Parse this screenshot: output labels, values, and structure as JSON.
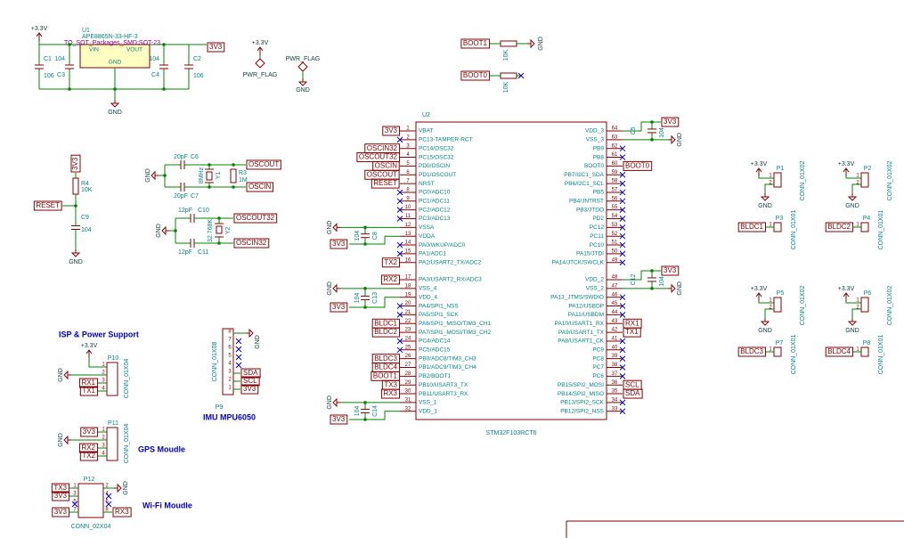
{
  "power": {
    "vcc": "+3.3V",
    "u1_ref": "U1",
    "u1_part": "APE8865N-33-HF-3",
    "u1_fp": "TO_SOT_Packages_SMD:SOT-23",
    "u1_vin": "VIN",
    "u1_vout": "VOUT",
    "u1_gnd": "GND",
    "c1_ref": "C1",
    "c1_val": "106",
    "c3_ref": "C3",
    "c3_val": "104",
    "c4_ref": "C4",
    "c4_val": "104",
    "c2_ref": "C2",
    "c2_val": "106",
    "out_net": "3V3",
    "gnd": "GND"
  },
  "pwr_flags": {
    "vcc": "+3.3V",
    "flag1": "PWR_FLAG",
    "flag2": "PWR_FLAG",
    "gnd": "GND"
  },
  "boot": {
    "boot1_net": "BOOT1",
    "r1_val": "10K",
    "gnd": "GND",
    "boot0_net": "BOOT0",
    "r2_val": "10K"
  },
  "osc": {
    "gnd": "GND",
    "c6_ref": "C6",
    "c6_val": "20pF",
    "c7_ref": "C7",
    "c7_val": "20pF",
    "y1_ref": "Y1",
    "y1_val": "8MHz",
    "r3_ref": "R3",
    "r3_val": "1M",
    "oscout_net": "OSCOUT",
    "oscin_net": "OSCIN"
  },
  "osc32": {
    "gnd": "GND",
    "c10_ref": "C10",
    "c10_val": "12pF",
    "c11_ref": "C11",
    "c11_val": "12pF",
    "y2_ref": "Y2",
    "y2_val": "32.768K",
    "oscout32_net": "OSCOUT32",
    "oscin32_net": "OSCIN32"
  },
  "reset": {
    "vcc_net": "3V3",
    "r4_ref": "R4",
    "r4_val": "10K",
    "c9_ref": "C9",
    "c9_val": "104",
    "reset_net": "RESET",
    "gnd": "GND"
  },
  "mcu": {
    "ref": "U2",
    "part": "STM32F103RCT6",
    "left_pins": [
      {
        "num": "1",
        "name": "VBAT",
        "net": "3V3"
      },
      {
        "num": "2",
        "name": "PC13-TAMPER-RCT",
        "nc": true
      },
      {
        "num": "3",
        "name": "PC14/OSC32",
        "net": "OSCIN32"
      },
      {
        "num": "4",
        "name": "PC15/OSC32",
        "net": "OSCOUT32"
      },
      {
        "num": "5",
        "name": "PD0/OSCIN",
        "net": "OSCIN"
      },
      {
        "num": "6",
        "name": "PD1/OSCOUT",
        "net": "OSCOUT"
      },
      {
        "num": "7",
        "name": "NRST",
        "net": "RESET"
      },
      {
        "num": "8",
        "name": "PC0/ADC10",
        "nc": true
      },
      {
        "num": "9",
        "name": "PC1/ADC11",
        "nc": true
      },
      {
        "num": "10",
        "name": "PC2/ADC12",
        "nc": true
      },
      {
        "num": "11",
        "name": "PC3/ADC13",
        "nc": true
      },
      {
        "num": "12",
        "name": "VSSA"
      },
      {
        "num": "13",
        "name": "VDDA"
      },
      {
        "num": "14",
        "name": "PA0/WKUP/ADC0",
        "nc": true
      },
      {
        "num": "15",
        "name": "PA1/ADC1",
        "nc": true
      },
      {
        "num": "16",
        "name": "PA2/USART2_TX/ADC2",
        "net": "TX2"
      },
      {
        "num": "17",
        "name": "PA3/USART2_RX/ADC3",
        "net": "RX2"
      },
      {
        "num": "18",
        "name": "VSS_4"
      },
      {
        "num": "19",
        "name": "VDD_4"
      },
      {
        "num": "20",
        "name": "PA4/SPI1_NSS",
        "nc": true
      },
      {
        "num": "21",
        "name": "PA5/SPI1_SCK",
        "nc": true
      },
      {
        "num": "22",
        "name": "PA6/SPI1_MISO/TIM3_CH1",
        "net": "BLDC1"
      },
      {
        "num": "23",
        "name": "PA7/SPI1_MOSI/TIM3_CH2",
        "net": "BLDC2"
      },
      {
        "num": "24",
        "name": "PC4/ADC14",
        "nc": true
      },
      {
        "num": "25",
        "name": "PC5/ADC15",
        "nc": true
      },
      {
        "num": "26",
        "name": "PB0/ADC8/TIM3_CH3",
        "net": "BLDC3"
      },
      {
        "num": "27",
        "name": "PB1/ADC9/TIM3_CH4",
        "net": "BLDC4"
      },
      {
        "num": "28",
        "name": "PB2/BOOT1",
        "net": "BOOT1"
      },
      {
        "num": "29",
        "name": "PB10/USART3_TX",
        "net": "TX3"
      },
      {
        "num": "30",
        "name": "PB11/USART3_RX",
        "net": "RX3"
      },
      {
        "num": "31",
        "name": "VSS_1"
      },
      {
        "num": "32",
        "name": "VDD_1"
      }
    ],
    "right_pins": [
      {
        "num": "64",
        "name": "VDD_3"
      },
      {
        "num": "63",
        "name": "VSS_3"
      },
      {
        "num": "62",
        "name": "PB9",
        "nc": true
      },
      {
        "num": "61",
        "name": "PB8",
        "nc": true
      },
      {
        "num": "60",
        "name": "BOOT0",
        "net": "BOOT0"
      },
      {
        "num": "59",
        "name": "PB7/I2C1_SDA",
        "nc": true
      },
      {
        "num": "58",
        "name": "PB6/I2C1_SCL",
        "nc": true
      },
      {
        "num": "57",
        "name": "PB5",
        "nc": true
      },
      {
        "num": "56",
        "name": "PB4/JNTRST",
        "nc": true
      },
      {
        "num": "55",
        "name": "PB3/JTDO",
        "nc": true
      },
      {
        "num": "54",
        "name": "PD2",
        "nc": true
      },
      {
        "num": "53",
        "name": "PC12",
        "nc": true
      },
      {
        "num": "52",
        "name": "PC11",
        "nc": true
      },
      {
        "num": "51",
        "name": "PC10",
        "nc": true
      },
      {
        "num": "50",
        "name": "PA15/JTDI",
        "nc": true
      },
      {
        "num": "49",
        "name": "PA14/JTCK/SWCLK",
        "nc": true
      },
      {
        "num": "48",
        "name": "VDD_2"
      },
      {
        "num": "47",
        "name": "VSS_2"
      },
      {
        "num": "46",
        "name": "PA13_JTMS/SWDIO",
        "nc": true
      },
      {
        "num": "45",
        "name": "PA12/USBDP",
        "nc": true
      },
      {
        "num": "44",
        "name": "PA11/USBDM",
        "nc": true
      },
      {
        "num": "43",
        "name": "PA10/USART1_RX",
        "net": "RX1"
      },
      {
        "num": "42",
        "name": "PA9/USART1_TX",
        "net": "TX1"
      },
      {
        "num": "41",
        "name": "PA8/USART1_CK",
        "nc": true
      },
      {
        "num": "40",
        "name": "PC9",
        "nc": true
      },
      {
        "num": "39",
        "name": "PC8",
        "nc": true
      },
      {
        "num": "38",
        "name": "PC7",
        "nc": true
      },
      {
        "num": "37",
        "name": "PC6",
        "nc": true
      },
      {
        "num": "36",
        "name": "PB15/SPI2_MOSI",
        "net": "SCL"
      },
      {
        "num": "35",
        "name": "PB14/SPI2_MISO",
        "net": "SDA"
      },
      {
        "num": "34",
        "name": "PB13/SPI2_SCK",
        "nc": true
      },
      {
        "num": "33",
        "name": "PB12/SPI2_NSS",
        "nc": true
      }
    ]
  },
  "decoupling_left": [
    {
      "gnd": "GND",
      "net": "3V3",
      "ref": "C8",
      "val": "104"
    },
    {
      "gnd": "GND",
      "net": "3V3",
      "ref": "C13",
      "val": "104"
    },
    {
      "gnd": "GND",
      "net": "3V3",
      "ref": "C14",
      "val": "104"
    }
  ],
  "decoupling_right": [
    {
      "gnd": "GND",
      "net": "3V3",
      "ref": "C5",
      "val": "104"
    },
    {
      "gnd": "GND",
      "net": "3V3",
      "ref": "C12",
      "val": "104"
    }
  ],
  "motors": [
    {
      "vcc": "+3.3V",
      "ref": "P1",
      "part": "CONN_01X02",
      "pins": [
        "1",
        "2"
      ],
      "gnd": "GND",
      "sig_ref": "P3",
      "sig_part": "CONN_01X01",
      "sig_pin": "1",
      "net": "BLDC1"
    },
    {
      "vcc": "+3.3V",
      "ref": "P2",
      "part": "CONN_01X02",
      "pins": [
        "1",
        "2"
      ],
      "gnd": "GND",
      "sig_ref": "P4",
      "sig_part": "CONN_01X01",
      "sig_pin": "1",
      "net": "BLDC2"
    },
    {
      "vcc": "+3.3V",
      "ref": "P5",
      "part": "CONN_01X02",
      "pins": [
        "1",
        "2"
      ],
      "gnd": "GND",
      "sig_ref": "P7",
      "sig_part": "CONN_01X01",
      "sig_pin": "1",
      "net": "BLDC3"
    },
    {
      "vcc": "+3.3V",
      "ref": "P6",
      "part": "CONN_01X02",
      "pins": [
        "1",
        "2"
      ],
      "gnd": "GND",
      "sig_ref": "P8",
      "sig_part": "CONN_01X01",
      "sig_pin": "1",
      "net": "BLDC4"
    }
  ],
  "isp": {
    "title": "ISP & Power Support",
    "vcc": "+3.3V",
    "ref": "P10",
    "part": "CONN_01X04",
    "gnd": "GND",
    "nets": [
      "RX1",
      "TX1"
    ],
    "pins": [
      "1",
      "2",
      "3",
      "4"
    ]
  },
  "gps": {
    "title": "GPS Moudle",
    "ref": "P11",
    "part": "CONN_01X04",
    "gnd": "GND",
    "nets": [
      "3V3",
      "RX2",
      "TX2"
    ],
    "pins": [
      "1",
      "2",
      "3",
      "4"
    ]
  },
  "wifi": {
    "title": "Wi-Fi Moudle",
    "ref": "P12",
    "part": "CONN_02X04",
    "gnd": "GND",
    "nets_left": [
      "TX3",
      "3V3",
      "3V3"
    ],
    "net_right": "RX3",
    "pins": [
      "1",
      "2",
      "3",
      "4",
      "5",
      "6",
      "7",
      "8"
    ]
  },
  "imu": {
    "title": "IMU MPU6050",
    "ref": "P9",
    "part": "CONN_01X08",
    "gnd": "GND",
    "nets": [
      "SDA",
      "SCL",
      "3V3"
    ],
    "pins": [
      "8",
      "7",
      "6",
      "5",
      "4",
      "3",
      "2",
      "1"
    ]
  }
}
